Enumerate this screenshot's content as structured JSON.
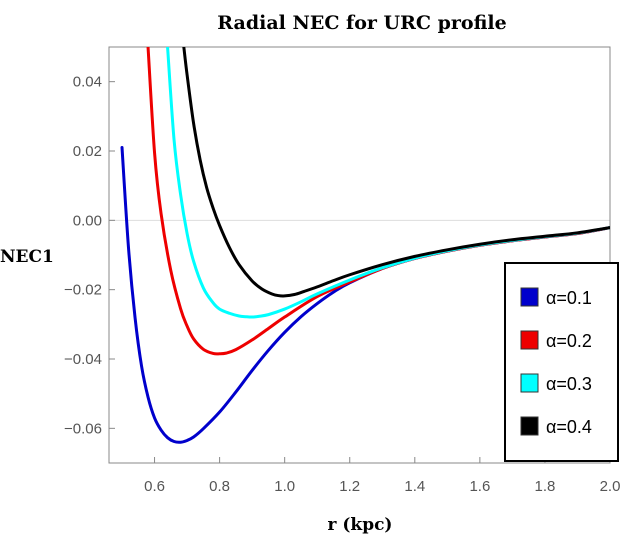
{
  "chart_data": {
    "type": "line",
    "title": "Radial NEC for URC profile",
    "xlabel": "r (kpc)",
    "ylabel": "NEC1",
    "xlim": [
      0.46,
      2.0
    ],
    "ylim": [
      -0.07,
      0.05
    ],
    "x_ticks": [
      "0.6",
      "0.8",
      "1.0",
      "1.2",
      "1.4",
      "1.6",
      "1.8",
      "2.0"
    ],
    "y_ticks": [
      "0.04",
      "0.02",
      "0.00",
      "−0.02",
      "−0.04",
      "−0.06"
    ],
    "x_tick_values": [
      0.6,
      0.8,
      1.0,
      1.2,
      1.4,
      1.6,
      1.8,
      2.0
    ],
    "y_tick_values": [
      0.04,
      0.02,
      0.0,
      -0.02,
      -0.04,
      -0.06
    ],
    "legend_position": "right",
    "series": [
      {
        "name": "α=0.1",
        "color": "#0000cc",
        "x": [
          0.5,
          0.52,
          0.54,
          0.56,
          0.58,
          0.6,
          0.62,
          0.64,
          0.66,
          0.68,
          0.7,
          0.72,
          0.75,
          0.8,
          0.85,
          0.9,
          0.95,
          1.0,
          1.05,
          1.1,
          1.15,
          1.2,
          1.3,
          1.4,
          1.5,
          1.6,
          1.7,
          1.8,
          1.9,
          2.0
        ],
        "y": [
          0.021,
          -0.008,
          -0.028,
          -0.042,
          -0.051,
          -0.057,
          -0.0605,
          -0.0627,
          -0.0638,
          -0.064,
          -0.0635,
          -0.0625,
          -0.0601,
          -0.0553,
          -0.0495,
          -0.0433,
          -0.0375,
          -0.0323,
          -0.0278,
          -0.024,
          -0.0207,
          -0.018,
          -0.0139,
          -0.011,
          -0.0089,
          -0.0072,
          -0.0059,
          -0.0048,
          -0.0038,
          -0.0021
        ]
      },
      {
        "name": "α=0.2",
        "color": "#ee0000",
        "x": [
          0.58,
          0.6,
          0.62,
          0.65,
          0.68,
          0.7,
          0.72,
          0.75,
          0.78,
          0.8,
          0.82,
          0.85,
          0.9,
          0.95,
          1.0,
          1.1,
          1.2,
          1.3,
          1.4,
          1.5,
          1.6,
          1.7,
          1.8,
          1.9,
          2.0
        ],
        "y": [
          0.05,
          0.0195,
          0.002,
          -0.0145,
          -0.0255,
          -0.0305,
          -0.0342,
          -0.0372,
          -0.0384,
          -0.0385,
          -0.0383,
          -0.0373,
          -0.0345,
          -0.0312,
          -0.0279,
          -0.022,
          -0.0178,
          -0.0139,
          -0.011,
          -0.0089,
          -0.0072,
          -0.0059,
          -0.0048,
          -0.0038,
          -0.0021
        ]
      },
      {
        "name": "α=0.3",
        "color": "#00ffff",
        "x": [
          0.64,
          0.66,
          0.68,
          0.7,
          0.72,
          0.75,
          0.78,
          0.8,
          0.83,
          0.86,
          0.88,
          0.9,
          0.92,
          0.95,
          1.0,
          1.05,
          1.1,
          1.2,
          1.3,
          1.4,
          1.5,
          1.6,
          1.7,
          1.8,
          1.9,
          2.0
        ],
        "y": [
          0.05,
          0.0232,
          0.0075,
          -0.0038,
          -0.0118,
          -0.0195,
          -0.0238,
          -0.0256,
          -0.0268,
          -0.0276,
          -0.0278,
          -0.0279,
          -0.0277,
          -0.0272,
          -0.0256,
          -0.0235,
          -0.0212,
          -0.0172,
          -0.0137,
          -0.0109,
          -0.0088,
          -0.0071,
          -0.0058,
          -0.0047,
          -0.0037,
          -0.0021
        ]
      },
      {
        "name": "α=0.4",
        "color": "#000000",
        "x": [
          0.69,
          0.7,
          0.72,
          0.74,
          0.76,
          0.78,
          0.8,
          0.83,
          0.86,
          0.9,
          0.93,
          0.96,
          0.98,
          1.0,
          1.03,
          1.06,
          1.1,
          1.15,
          1.2,
          1.3,
          1.4,
          1.5,
          1.6,
          1.7,
          1.8,
          1.9,
          2.0
        ],
        "y": [
          0.05,
          0.042,
          0.028,
          0.0175,
          0.0095,
          0.0035,
          -0.0015,
          -0.0078,
          -0.0128,
          -0.0175,
          -0.0198,
          -0.0212,
          -0.0217,
          -0.0218,
          -0.0214,
          -0.0205,
          -0.0192,
          -0.0174,
          -0.0157,
          -0.0128,
          -0.0104,
          -0.0085,
          -0.0069,
          -0.0056,
          -0.0046,
          -0.0036,
          -0.0021
        ]
      }
    ]
  }
}
